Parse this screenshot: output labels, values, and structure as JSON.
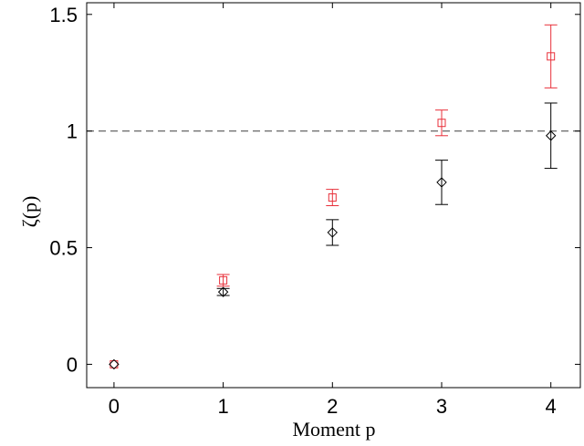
{
  "chart_data": {
    "type": "scatter",
    "xlabel": "Moment p",
    "ylabel": "ζ(p)",
    "xlim": [
      -0.25,
      4.27
    ],
    "ylim": [
      -0.1,
      1.55
    ],
    "x_ticks": [
      0,
      1,
      2,
      3,
      4
    ],
    "x_tick_labels": [
      "0",
      "1",
      "2",
      "3",
      "4"
    ],
    "y_ticks": [
      0,
      0.5,
      1,
      1.5
    ],
    "y_tick_labels": [
      "0",
      "0.5",
      "1",
      "1.5"
    ],
    "grid": false,
    "legend": "none",
    "reference_line": {
      "y": 1,
      "style": "dashed",
      "color": "#555555"
    },
    "series": [
      {
        "marker": "square",
        "color": "#e8303a",
        "x": [
          0,
          1,
          2,
          3,
          4
        ],
        "y": [
          0,
          0.36,
          0.715,
          1.035,
          1.32
        ],
        "err_low": [
          0,
          0.025,
          0.035,
          0.055,
          0.135
        ],
        "err_high": [
          0,
          0.025,
          0.035,
          0.055,
          0.135
        ]
      },
      {
        "marker": "diamond",
        "color": "#000000",
        "x": [
          0,
          1,
          2,
          3,
          4
        ],
        "y": [
          0,
          0.31,
          0.565,
          0.78,
          0.98
        ],
        "err_low": [
          0,
          0.015,
          0.055,
          0.095,
          0.14
        ],
        "err_high": [
          0,
          0.015,
          0.055,
          0.095,
          0.14
        ]
      }
    ]
  }
}
